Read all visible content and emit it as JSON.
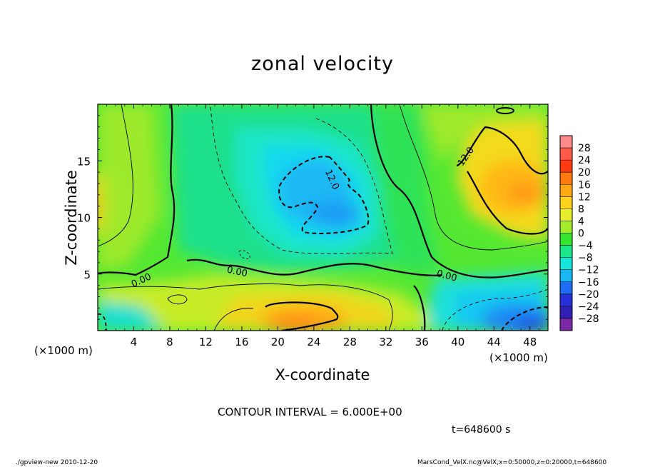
{
  "chart_data": {
    "type": "heatmap",
    "title": "zonal velocity",
    "xlabel": "X-coordinate",
    "ylabel": "Z-coordinate",
    "x_unit": "(×1000 m)",
    "xlim": [
      0,
      50
    ],
    "ylim": [
      0,
      20
    ],
    "x_ticks": [
      4,
      8,
      12,
      16,
      20,
      24,
      28,
      32,
      36,
      40,
      44,
      48
    ],
    "y_ticks": [
      5,
      10,
      15
    ],
    "colorbar": {
      "labels": [
        "28",
        "24",
        "20",
        "16",
        "12",
        "8",
        "4",
        "0",
        "−4",
        "−8",
        "−12",
        "−16",
        "−20",
        "−24",
        "−28"
      ],
      "colors": [
        "#ff8a8a",
        "#ff5a4a",
        "#ff3a12",
        "#ff7a10",
        "#ffa814",
        "#ffd31d",
        "#e6ef29",
        "#a5eb2c",
        "#34e42e",
        "#1ce68a",
        "#14e7da",
        "#1ab6f4",
        "#1f6df5",
        "#2730d6",
        "#2f1fb4",
        "#7a2aa4"
      ]
    },
    "contour_labels": [
      "0.00",
      "0.00",
      "0.00",
      "12.0",
      "12.0"
    ],
    "contour_interval": "CONTOUR INTERVAL = 6.000E+00",
    "time": "t=648600 s"
  },
  "footer": {
    "left": "./gpview-new  2010-12-20",
    "right": "MarsCond_VelX.nc@VelX,x=0:50000,z=0:20000,t=648600"
  }
}
